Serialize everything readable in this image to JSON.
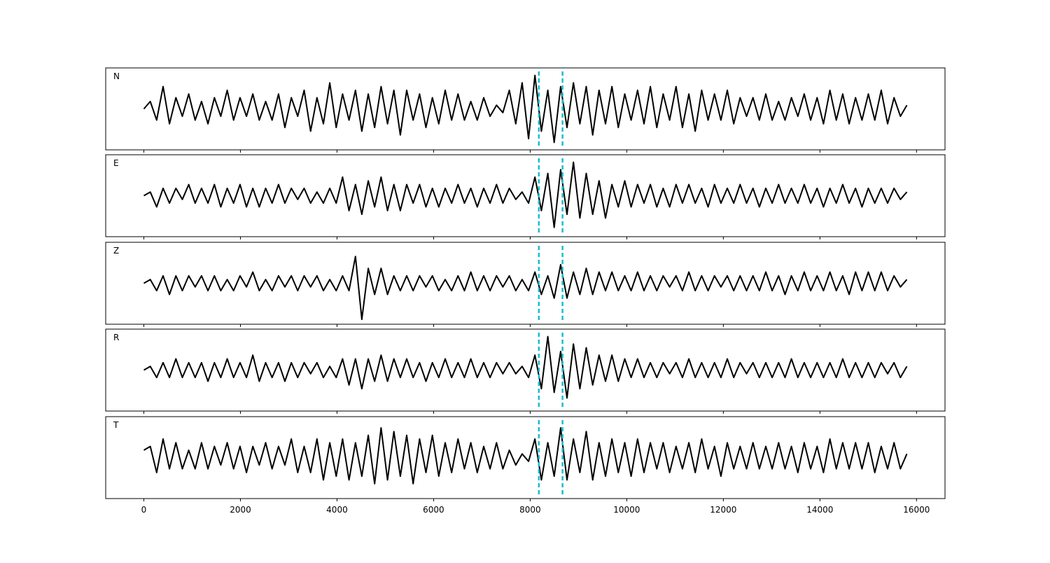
{
  "chart_data": {
    "type": "line",
    "xlim": [
      -790,
      16590
    ],
    "ylim": [
      -1.1,
      1.1
    ],
    "x_ticks": [
      0,
      2000,
      4000,
      6000,
      8000,
      10000,
      12000,
      14000,
      16000
    ],
    "x_tick_labels": [
      "0",
      "2000",
      "4000",
      "6000",
      "8000",
      "10000",
      "12000",
      "14000",
      "16000"
    ],
    "x_range": [
      0,
      15800
    ],
    "grid": false,
    "line_color": "#000000",
    "marker_color": "#17becf",
    "markers": [
      8180,
      8670
    ],
    "series": [
      {
        "name": "N",
        "values": [
          0,
          0.2,
          -0.3,
          0.6,
          -0.4,
          0.3,
          -0.2,
          0.4,
          -0.3,
          0.2,
          -0.4,
          0.3,
          -0.2,
          0.5,
          -0.3,
          0.3,
          -0.2,
          0.4,
          -0.3,
          0.2,
          -0.3,
          0.4,
          -0.5,
          0.3,
          -0.2,
          0.5,
          -0.6,
          0.3,
          -0.4,
          0.7,
          -0.5,
          0.4,
          -0.3,
          0.5,
          -0.6,
          0.4,
          -0.5,
          0.6,
          -0.4,
          0.5,
          -0.7,
          0.5,
          -0.3,
          0.4,
          -0.5,
          0.3,
          -0.4,
          0.5,
          -0.3,
          0.4,
          -0.3,
          0.2,
          -0.3,
          0.3,
          -0.2,
          0.1,
          -0.1,
          0.5,
          -0.4,
          0.7,
          -0.8,
          0.9,
          -0.6,
          0.5,
          -0.9,
          0.6,
          -0.5,
          0.7,
          -0.4,
          0.6,
          -0.7,
          0.5,
          -0.4,
          0.6,
          -0.5,
          0.4,
          -0.3,
          0.5,
          -0.4,
          0.6,
          -0.5,
          0.4,
          -0.3,
          0.6,
          -0.5,
          0.4,
          -0.6,
          0.5,
          -0.3,
          0.4,
          -0.3,
          0.5,
          -0.4,
          0.3,
          -0.2,
          0.3,
          -0.3,
          0.4,
          -0.3,
          0.2,
          -0.3,
          0.3,
          -0.2,
          0.4,
          -0.3,
          0.3,
          -0.4,
          0.5,
          -0.3,
          0.4,
          -0.4,
          0.3,
          -0.3,
          0.4,
          -0.3,
          0.5,
          -0.4,
          0.3,
          -0.2,
          0.1
        ]
      },
      {
        "name": "E",
        "values": [
          0,
          0.1,
          -0.3,
          0.2,
          -0.2,
          0.2,
          -0.1,
          0.3,
          -0.2,
          0.2,
          -0.2,
          0.3,
          -0.3,
          0.2,
          -0.2,
          0.3,
          -0.3,
          0.2,
          -0.3,
          0.2,
          -0.2,
          0.3,
          -0.2,
          0.2,
          -0.1,
          0.2,
          -0.2,
          0.1,
          -0.2,
          0.2,
          -0.2,
          0.5,
          -0.4,
          0.3,
          -0.5,
          0.4,
          -0.3,
          0.5,
          -0.4,
          0.3,
          -0.4,
          0.3,
          -0.2,
          0.3,
          -0.3,
          0.2,
          -0.3,
          0.2,
          -0.2,
          0.3,
          -0.2,
          0.2,
          -0.3,
          0.2,
          -0.2,
          0.3,
          -0.2,
          0.2,
          -0.1,
          0.1,
          -0.2,
          0.5,
          -0.4,
          0.6,
          -0.85,
          0.7,
          -0.5,
          0.9,
          -0.6,
          0.6,
          -0.5,
          0.4,
          -0.6,
          0.3,
          -0.3,
          0.4,
          -0.3,
          0.3,
          -0.2,
          0.3,
          -0.3,
          0.2,
          -0.3,
          0.3,
          -0.2,
          0.3,
          -0.2,
          0.2,
          -0.3,
          0.3,
          -0.2,
          0.2,
          -0.2,
          0.3,
          -0.2,
          0.2,
          -0.3,
          0.2,
          -0.2,
          0.3,
          -0.2,
          0.2,
          -0.2,
          0.3,
          -0.2,
          0.2,
          -0.3,
          0.2,
          -0.2,
          0.3,
          -0.2,
          0.2,
          -0.3,
          0.2,
          -0.2,
          0.2,
          -0.2,
          0.2,
          -0.1,
          0.1
        ]
      },
      {
        "name": "Z",
        "values": [
          0,
          0.1,
          -0.2,
          0.2,
          -0.3,
          0.2,
          -0.2,
          0.2,
          -0.1,
          0.2,
          -0.2,
          0.2,
          -0.2,
          0.1,
          -0.2,
          0.2,
          -0.1,
          0.3,
          -0.2,
          0.1,
          -0.2,
          0.2,
          -0.1,
          0.2,
          -0.2,
          0.2,
          -0.1,
          0.2,
          -0.2,
          0.1,
          -0.2,
          0.2,
          -0.2,
          0.72,
          -0.97,
          0.4,
          -0.3,
          0.4,
          -0.3,
          0.2,
          -0.2,
          0.2,
          -0.2,
          0.2,
          -0.1,
          0.2,
          -0.2,
          0.1,
          -0.2,
          0.2,
          -0.2,
          0.3,
          -0.2,
          0.2,
          -0.2,
          0.2,
          -0.1,
          0.2,
          -0.2,
          0.1,
          -0.2,
          0.3,
          -0.3,
          0.2,
          -0.4,
          0.5,
          -0.4,
          0.3,
          -0.3,
          0.4,
          -0.3,
          0.3,
          -0.2,
          0.3,
          -0.2,
          0.2,
          -0.2,
          0.3,
          -0.2,
          0.2,
          -0.2,
          0.2,
          -0.1,
          0.2,
          -0.2,
          0.3,
          -0.2,
          0.2,
          -0.2,
          0.2,
          -0.1,
          0.2,
          -0.2,
          0.2,
          -0.2,
          0.2,
          -0.2,
          0.3,
          -0.2,
          0.2,
          -0.3,
          0.2,
          -0.2,
          0.3,
          -0.2,
          0.2,
          -0.2,
          0.3,
          -0.2,
          0.2,
          -0.3,
          0.3,
          -0.2,
          0.3,
          -0.2,
          0.3,
          -0.2,
          0.2,
          -0.1,
          0.1
        ]
      },
      {
        "name": "R",
        "values": [
          0,
          0.1,
          -0.2,
          0.2,
          -0.2,
          0.3,
          -0.2,
          0.2,
          -0.2,
          0.2,
          -0.3,
          0.2,
          -0.2,
          0.3,
          -0.2,
          0.2,
          -0.2,
          0.4,
          -0.3,
          0.2,
          -0.2,
          0.2,
          -0.3,
          0.2,
          -0.2,
          0.2,
          -0.1,
          0.2,
          -0.2,
          0.1,
          -0.2,
          0.3,
          -0.4,
          0.3,
          -0.5,
          0.3,
          -0.3,
          0.4,
          -0.3,
          0.3,
          -0.2,
          0.3,
          -0.2,
          0.2,
          -0.3,
          0.2,
          -0.2,
          0.3,
          -0.2,
          0.2,
          -0.2,
          0.3,
          -0.2,
          0.2,
          -0.2,
          0.2,
          -0.1,
          0.2,
          -0.1,
          0.1,
          -0.2,
          0.4,
          -0.5,
          0.9,
          -0.6,
          0.5,
          -0.75,
          0.7,
          -0.5,
          0.6,
          -0.4,
          0.4,
          -0.3,
          0.4,
          -0.3,
          0.3,
          -0.2,
          0.3,
          -0.2,
          0.2,
          -0.2,
          0.2,
          -0.1,
          0.2,
          -0.2,
          0.3,
          -0.2,
          0.2,
          -0.2,
          0.2,
          -0.2,
          0.3,
          -0.2,
          0.2,
          -0.1,
          0.2,
          -0.2,
          0.2,
          -0.2,
          0.2,
          -0.2,
          0.3,
          -0.2,
          0.2,
          -0.2,
          0.2,
          -0.2,
          0.2,
          -0.2,
          0.3,
          -0.2,
          0.2,
          -0.2,
          0.2,
          -0.2,
          0.2,
          -0.1,
          0.2,
          -0.2,
          0.1
        ]
      },
      {
        "name": "T",
        "values": [
          0.2,
          0.3,
          -0.4,
          0.5,
          -0.3,
          0.4,
          -0.3,
          0.2,
          -0.3,
          0.4,
          -0.3,
          0.3,
          -0.2,
          0.4,
          -0.3,
          0.3,
          -0.4,
          0.3,
          -0.2,
          0.4,
          -0.3,
          0.3,
          -0.2,
          0.5,
          -0.4,
          0.3,
          -0.4,
          0.5,
          -0.6,
          0.4,
          -0.5,
          0.5,
          -0.6,
          0.4,
          -0.5,
          0.6,
          -0.7,
          0.8,
          -0.6,
          0.7,
          -0.5,
          0.6,
          -0.7,
          0.5,
          -0.4,
          0.6,
          -0.5,
          0.4,
          -0.4,
          0.5,
          -0.3,
          0.4,
          -0.4,
          0.3,
          -0.3,
          0.4,
          -0.3,
          0.2,
          -0.2,
          0.1,
          -0.1,
          0.5,
          -0.6,
          0.4,
          -0.5,
          0.8,
          -0.6,
          0.5,
          -0.4,
          0.7,
          -0.6,
          0.4,
          -0.5,
          0.5,
          -0.4,
          0.4,
          -0.5,
          0.5,
          -0.4,
          0.4,
          -0.3,
          0.4,
          -0.4,
          0.3,
          -0.3,
          0.4,
          -0.4,
          0.5,
          -0.3,
          0.3,
          -0.5,
          0.4,
          -0.3,
          0.3,
          -0.3,
          0.4,
          -0.3,
          0.3,
          -0.3,
          0.4,
          -0.3,
          0.3,
          -0.4,
          0.4,
          -0.3,
          0.3,
          -0.4,
          0.5,
          -0.3,
          0.4,
          -0.3,
          0.4,
          -0.3,
          0.4,
          -0.4,
          0.3,
          -0.3,
          0.4,
          -0.3,
          0.1
        ]
      }
    ]
  }
}
